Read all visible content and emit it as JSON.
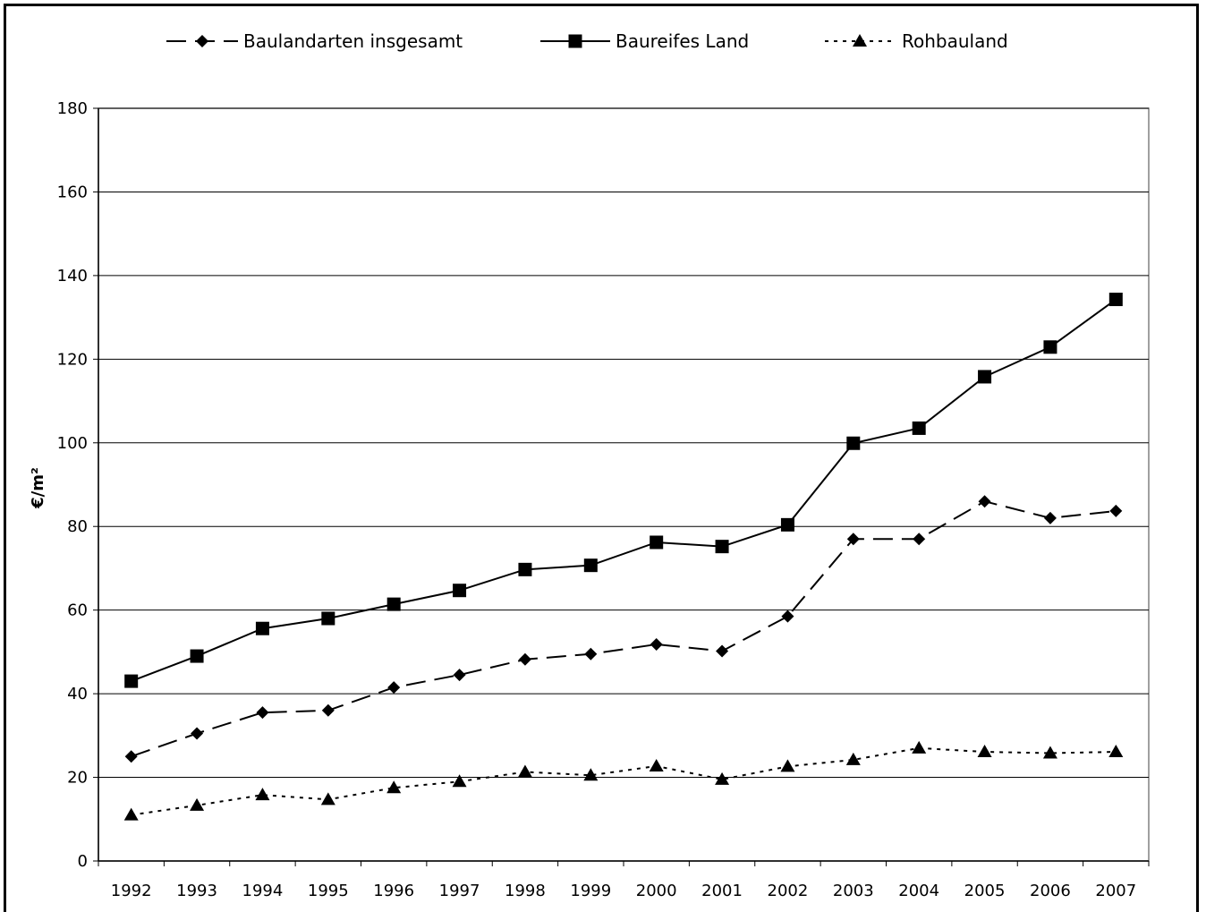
{
  "chart_data": {
    "type": "line",
    "title": "",
    "xlabel": "",
    "ylabel": "€/m²",
    "ylim": [
      0,
      180
    ],
    "yticks": [
      0,
      20,
      40,
      60,
      80,
      100,
      120,
      140,
      160,
      180
    ],
    "grid": "horizontal",
    "legend": "top",
    "categories": [
      "1992",
      "1993",
      "1994",
      "1995",
      "1996",
      "1997",
      "1998",
      "1999",
      "2000",
      "2001",
      "2002",
      "2003",
      "2004",
      "2005",
      "2006",
      "2007"
    ],
    "series": [
      {
        "name": "Baulandarten insgesamt",
        "line_style": "dashed",
        "marker": "diamond",
        "color": "#000000",
        "values": [
          25,
          30.5,
          35.5,
          36,
          41.5,
          44.5,
          48.2,
          49.5,
          51.8,
          50.2,
          58.5,
          77,
          77,
          86,
          82,
          83.7
        ]
      },
      {
        "name": "Baureifes Land",
        "line_style": "solid",
        "marker": "square",
        "color": "#000000",
        "values": [
          43,
          49,
          55.6,
          58,
          61.4,
          64.7,
          69.7,
          70.7,
          76.2,
          75.2,
          80.4,
          99.9,
          103.5,
          115.8,
          122.9,
          134.3
        ]
      },
      {
        "name": "Rohbauland",
        "line_style": "dotted",
        "marker": "triangle",
        "color": "#000000",
        "values": [
          11,
          13.3,
          15.8,
          14.7,
          17.5,
          19,
          21.3,
          20.5,
          22.7,
          19.5,
          22.6,
          24.2,
          27,
          26.1,
          25.8,
          26.1
        ]
      }
    ]
  }
}
